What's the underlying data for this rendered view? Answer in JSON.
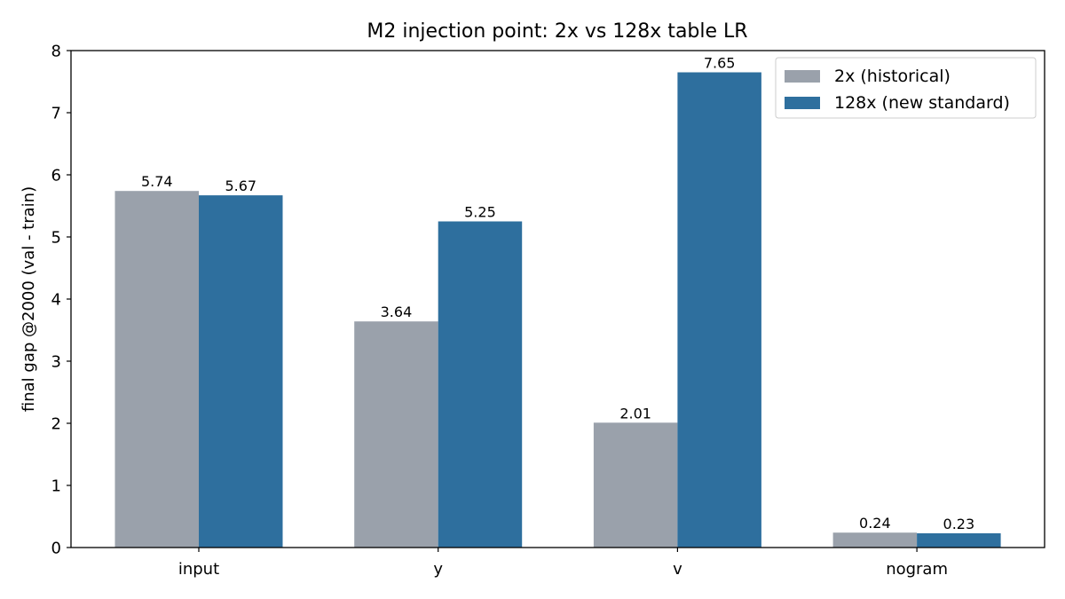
{
  "chart_data": {
    "type": "bar",
    "title": "M2 injection point: 2x vs 128x table LR",
    "xlabel": "",
    "ylabel": "final gap @2000 (val - train)",
    "ylim": [
      0,
      8
    ],
    "yticks": [
      "0",
      "1",
      "2",
      "3",
      "4",
      "5",
      "6",
      "7",
      "8"
    ],
    "categories": [
      "input",
      "y",
      "v",
      "nogram"
    ],
    "series": [
      {
        "name": "2x (historical)",
        "values": [
          5.74,
          3.64,
          2.01,
          0.24
        ],
        "labels": [
          "5.74",
          "3.64",
          "2.01",
          "0.24"
        ],
        "color": "#9aa1ab"
      },
      {
        "name": "128x (new standard)",
        "values": [
          5.67,
          5.25,
          7.65,
          0.23
        ],
        "labels": [
          "5.67",
          "5.25",
          "7.65",
          "0.23"
        ],
        "color": "#2e6f9e"
      }
    ],
    "legend": "top-right",
    "grid": false
  }
}
